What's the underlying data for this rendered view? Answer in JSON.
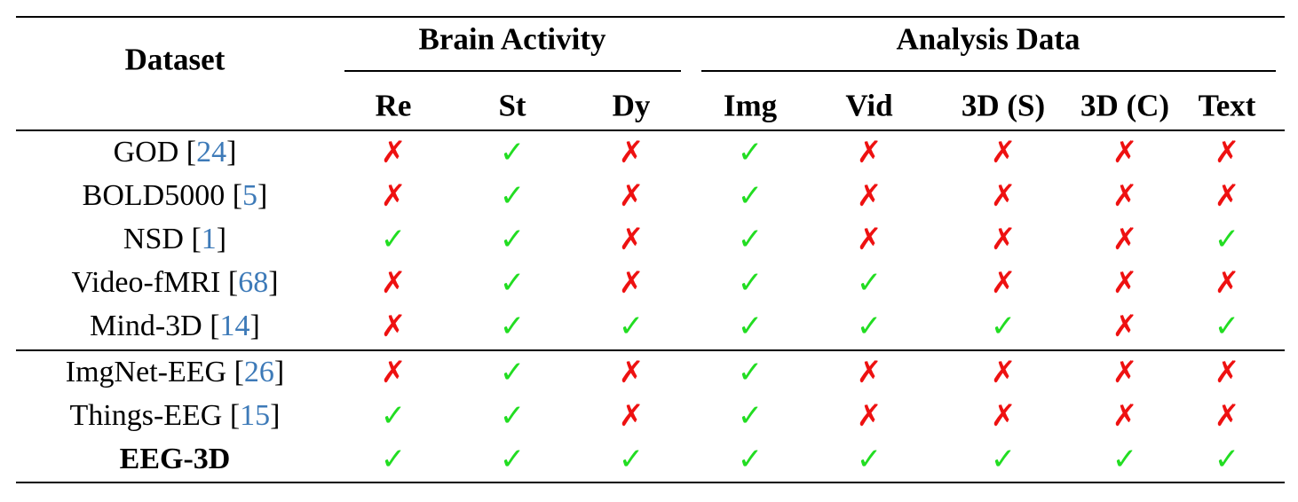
{
  "table": {
    "header": {
      "dataset_label": "Dataset",
      "group_brain": "Brain Activity",
      "group_analysis": "Analysis Data",
      "columns": [
        "Re",
        "St",
        "Dy",
        "Img",
        "Vid",
        "3D (S)",
        "3D (C)",
        "Text"
      ]
    },
    "marks": {
      "yes_symbol": "✓",
      "no_symbol": "✗",
      "yes_color": "#22dd22",
      "no_color": "#ee1111"
    },
    "citation_color": "#3d7ab8",
    "rows": [
      {
        "name": "GOD",
        "cite": "24",
        "values": [
          false,
          true,
          false,
          true,
          false,
          false,
          false,
          false
        ]
      },
      {
        "name": "BOLD5000",
        "cite": "5",
        "values": [
          false,
          true,
          false,
          true,
          false,
          false,
          false,
          false
        ]
      },
      {
        "name": "NSD",
        "cite": "1",
        "values": [
          true,
          true,
          false,
          true,
          false,
          false,
          false,
          true
        ]
      },
      {
        "name": "Video-fMRI",
        "cite": "68",
        "values": [
          false,
          true,
          false,
          true,
          true,
          false,
          false,
          false
        ]
      },
      {
        "name": "Mind-3D",
        "cite": "14",
        "values": [
          false,
          true,
          true,
          true,
          true,
          true,
          false,
          true
        ]
      },
      {
        "name": "ImgNet-EEG",
        "cite": "26",
        "values": [
          false,
          true,
          false,
          true,
          false,
          false,
          false,
          false
        ]
      },
      {
        "name": "Things-EEG",
        "cite": "15",
        "values": [
          true,
          true,
          false,
          true,
          false,
          false,
          false,
          false
        ]
      },
      {
        "name": "EEG-3D",
        "cite": "",
        "bold": true,
        "values": [
          true,
          true,
          true,
          true,
          true,
          true,
          true,
          true
        ]
      }
    ]
  }
}
